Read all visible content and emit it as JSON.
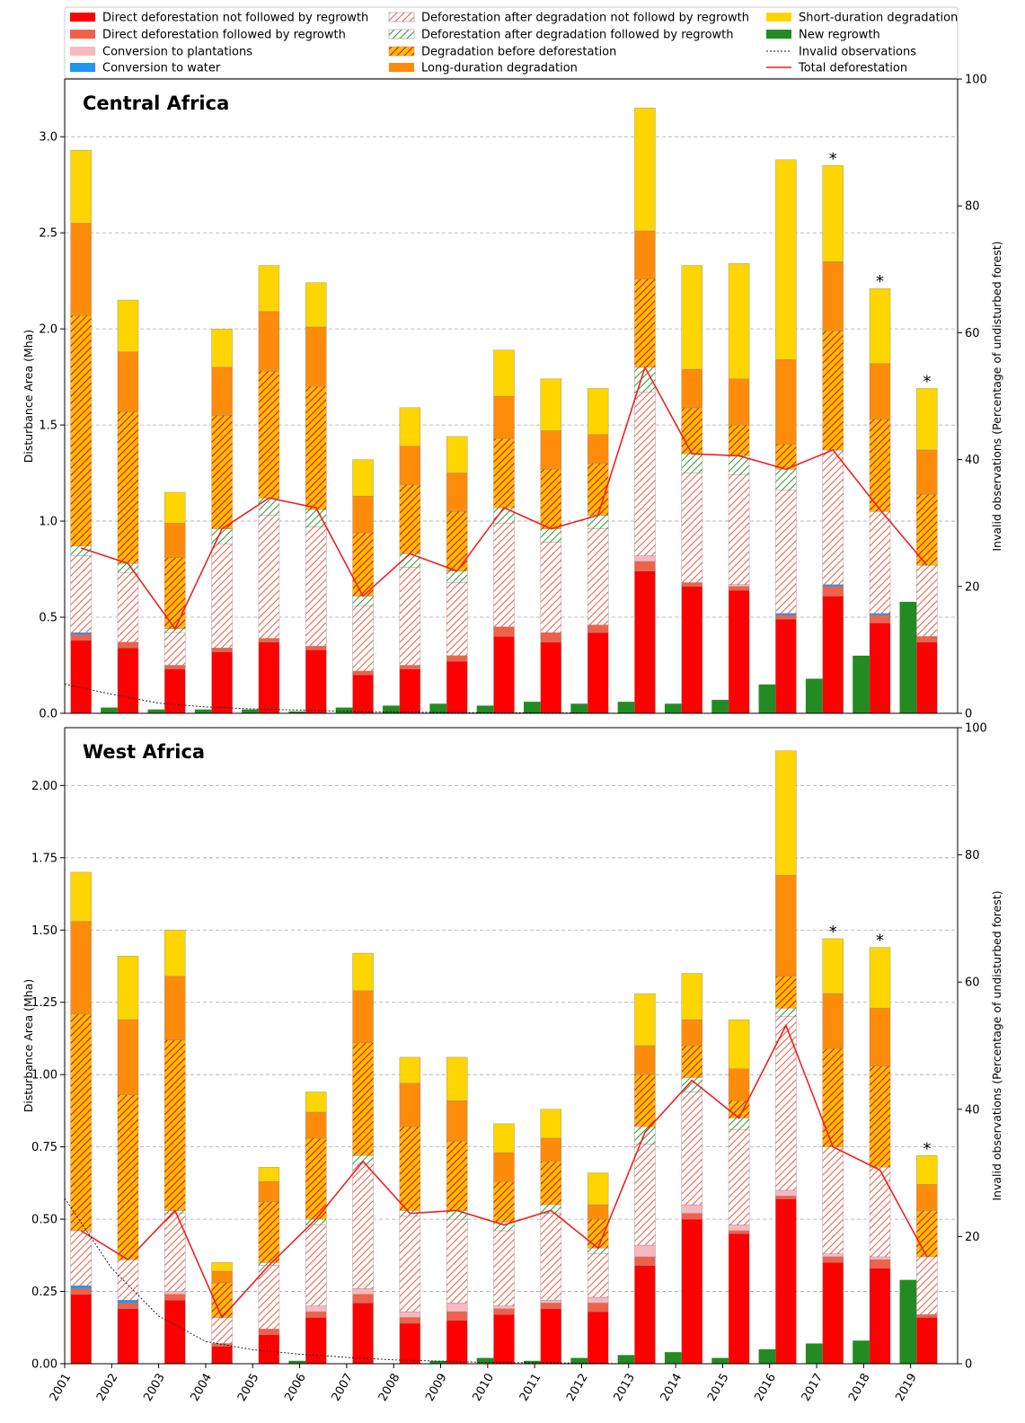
{
  "colors": {
    "direct_no_regrowth": "#fe0000",
    "direct_regrowth": "#f0614a",
    "plantations": "#f9b7c0",
    "water": "#2196f3",
    "after_deg_no_regrowth_line": "#f0614a",
    "after_deg_no_regrowth_bg": "#ffffff",
    "after_deg_regrowth_line": "#3c9a3c",
    "after_deg_regrowth_bg": "#ffffff",
    "deg_before_def_bg": "#ffc000",
    "deg_before_def_line": "#ff0000",
    "long_degradation": "#fe8c0a",
    "short_degradation": "#ffd500",
    "new_regrowth": "#238b22",
    "total_line": "#ee2222",
    "invalid_line": "#111111",
    "grid": "#a9a9a9"
  },
  "chart_data": {
    "type": "bar",
    "stacked": true,
    "x": [
      "2001",
      "2002",
      "2003",
      "2004",
      "2005",
      "2006",
      "2007",
      "2008",
      "2009",
      "2010",
      "2011",
      "2012",
      "2013",
      "2014",
      "2015",
      "2016",
      "2017",
      "2018",
      "2019"
    ],
    "legend": [
      {
        "key": "direct_no_regrowth",
        "label": "Direct deforestation not followed by regrowth",
        "kind": "fill"
      },
      {
        "key": "direct_regrowth",
        "label": "Direct deforestation followed by regrowth",
        "kind": "fill"
      },
      {
        "key": "plantations",
        "label": "Conversion to plantations",
        "kind": "fill"
      },
      {
        "key": "water",
        "label": "Conversion to water",
        "kind": "fill"
      },
      {
        "key": "after_deg_no_regrowth",
        "label": "Deforestation after degradation not followd by regrowth",
        "kind": "hatch"
      },
      {
        "key": "after_deg_regrowth",
        "label": "Deforestation after degradation followed by regrowth",
        "kind": "hatch"
      },
      {
        "key": "deg_before_def",
        "label": "Degradation before deforestation",
        "kind": "hatch"
      },
      {
        "key": "long_degradation",
        "label": "Long-duration degradation",
        "kind": "fill"
      },
      {
        "key": "short_degradation",
        "label": "Short-duration degradation",
        "kind": "fill"
      },
      {
        "key": "new_regrowth",
        "label": "New regrowth",
        "kind": "fill"
      },
      {
        "key": "invalid",
        "label": "Invalid observations",
        "kind": "dotted"
      },
      {
        "key": "total",
        "label": "Total deforestation",
        "kind": "line"
      }
    ],
    "panels": [
      {
        "title": "Central Africa",
        "ylabel": "Disturbance Area (Mha)",
        "y2label": "Invalid observations (Percentage of undisturbed forest)",
        "ylim": [
          0,
          3.3
        ],
        "yticks": [
          0.0,
          0.5,
          1.0,
          1.5,
          2.0,
          2.5,
          3.0
        ],
        "ytick_labels": [
          "0.0",
          "0.5",
          "1.0",
          "1.5",
          "2.0",
          "2.5",
          "3.0"
        ],
        "y2lim": [
          0,
          100
        ],
        "y2ticks": [
          0,
          20,
          40,
          60,
          80,
          100
        ],
        "y2tick_labels": [
          "0",
          "20",
          "40",
          "60",
          "80",
          "100"
        ],
        "stack": {
          "direct_no_regrowth": [
            0.38,
            0.34,
            0.23,
            0.32,
            0.37,
            0.33,
            0.2,
            0.23,
            0.27,
            0.4,
            0.37,
            0.42,
            0.74,
            0.66,
            0.64,
            0.49,
            0.61,
            0.47,
            0.37
          ],
          "direct_regrowth": [
            0.03,
            0.03,
            0.02,
            0.02,
            0.02,
            0.02,
            0.02,
            0.02,
            0.03,
            0.05,
            0.05,
            0.04,
            0.05,
            0.02,
            0.02,
            0.02,
            0.05,
            0.04,
            0.03
          ],
          "plantations": [
            0.0,
            0.0,
            0.0,
            0.0,
            0.0,
            0.0,
            0.0,
            0.0,
            0.0,
            0.0,
            0.0,
            0.0,
            0.03,
            0.0,
            0.01,
            0.0,
            0.0,
            0.0,
            0.0
          ],
          "water": [
            0.01,
            0.0,
            0.0,
            0.0,
            0.0,
            0.0,
            0.0,
            0.0,
            0.0,
            0.0,
            0.0,
            0.0,
            0.0,
            0.0,
            0.0,
            0.01,
            0.01,
            0.01,
            0.0
          ],
          "after_deg_no_regrowth": [
            0.4,
            0.36,
            0.17,
            0.54,
            0.64,
            0.62,
            0.34,
            0.51,
            0.38,
            0.54,
            0.47,
            0.5,
            0.85,
            0.57,
            0.57,
            0.64,
            0.7,
            0.53,
            0.37
          ],
          "after_deg_regrowth": [
            0.05,
            0.05,
            0.02,
            0.08,
            0.09,
            0.09,
            0.05,
            0.07,
            0.06,
            0.08,
            0.07,
            0.07,
            0.13,
            0.1,
            0.1,
            0.11,
            0.0,
            0.0,
            0.0
          ],
          "deg_before_def": [
            1.2,
            0.79,
            0.37,
            0.59,
            0.66,
            0.64,
            0.33,
            0.36,
            0.31,
            0.36,
            0.31,
            0.27,
            0.46,
            0.24,
            0.16,
            0.13,
            0.62,
            0.48,
            0.37
          ],
          "long_degradation": [
            0.48,
            0.31,
            0.18,
            0.25,
            0.31,
            0.31,
            0.19,
            0.2,
            0.2,
            0.22,
            0.2,
            0.15,
            0.25,
            0.2,
            0.24,
            0.44,
            0.36,
            0.29,
            0.23
          ],
          "short_degradation": [
            0.38,
            0.27,
            0.16,
            0.2,
            0.24,
            0.23,
            0.19,
            0.2,
            0.19,
            0.24,
            0.27,
            0.24,
            0.64,
            0.54,
            0.6,
            1.04,
            0.5,
            0.39,
            0.32
          ]
        },
        "new_regrowth": [
          0.03,
          0.02,
          0.02,
          0.02,
          0.01,
          0.03,
          0.04,
          0.05,
          0.04,
          0.06,
          0.05,
          0.06,
          0.05,
          0.07,
          0.15,
          0.18,
          0.3,
          0.58,
          0.0
        ],
        "total_deforestation": [
          0.86,
          0.78,
          0.44,
          0.96,
          1.12,
          1.07,
          0.61,
          0.83,
          0.74,
          1.07,
          0.96,
          1.03,
          1.8,
          1.35,
          1.34,
          1.27,
          1.37,
          1.06,
          0.77
        ],
        "invalid_observations_pct": [
          4.6,
          3.0,
          1.6,
          1.0,
          0.7,
          0.5,
          0.3,
          0.2,
          0.15,
          0.1,
          0.1,
          0.05,
          0.0,
          0.0,
          0.0,
          0.0,
          0.0,
          0.0,
          0.0
        ],
        "asterisk_years": [
          "2017",
          "2018",
          "2019"
        ],
        "asterisk": "*"
      },
      {
        "title": "West Africa",
        "ylabel": "Disturbance Area (Mha)",
        "y2label": "Invalid observations (Percentage of undisturbed forest)",
        "ylim": [
          0,
          2.2
        ],
        "yticks": [
          0.0,
          0.25,
          0.5,
          0.75,
          1.0,
          1.25,
          1.5,
          1.75,
          2.0
        ],
        "ytick_labels": [
          "0.00",
          "0.25",
          "0.50",
          "0.75",
          "1.00",
          "1.25",
          "1.50",
          "1.75",
          "2.00"
        ],
        "y2lim": [
          0,
          100
        ],
        "y2ticks": [
          0,
          20,
          40,
          60,
          80,
          100
        ],
        "y2tick_labels": [
          "0",
          "20",
          "40",
          "60",
          "80",
          "100"
        ],
        "stack": {
          "direct_no_regrowth": [
            0.24,
            0.19,
            0.22,
            0.06,
            0.1,
            0.16,
            0.21,
            0.14,
            0.15,
            0.17,
            0.19,
            0.18,
            0.34,
            0.5,
            0.45,
            0.57,
            0.35,
            0.33,
            0.16
          ],
          "direct_regrowth": [
            0.02,
            0.02,
            0.02,
            0.01,
            0.02,
            0.02,
            0.03,
            0.02,
            0.03,
            0.02,
            0.02,
            0.03,
            0.03,
            0.02,
            0.01,
            0.01,
            0.02,
            0.03,
            0.01
          ],
          "plantations": [
            0.0,
            0.0,
            0.01,
            0.0,
            0.0,
            0.02,
            0.02,
            0.02,
            0.03,
            0.01,
            0.01,
            0.02,
            0.04,
            0.03,
            0.02,
            0.02,
            0.01,
            0.01,
            0.0
          ],
          "water": [
            0.01,
            0.01,
            0.0,
            0.0,
            0.0,
            0.0,
            0.0,
            0.0,
            0.0,
            0.0,
            0.0,
            0.0,
            0.0,
            0.0,
            0.0,
            0.0,
            0.0,
            0.0,
            0.0
          ],
          "after_deg_no_regrowth": [
            0.19,
            0.14,
            0.27,
            0.09,
            0.22,
            0.28,
            0.43,
            0.33,
            0.29,
            0.26,
            0.3,
            0.15,
            0.35,
            0.39,
            0.33,
            0.6,
            0.37,
            0.31,
            0.2
          ],
          "after_deg_regrowth": [
            0.0,
            0.0,
            0.01,
            0.0,
            0.01,
            0.02,
            0.03,
            0.02,
            0.03,
            0.03,
            0.03,
            0.02,
            0.06,
            0.05,
            0.04,
            0.03,
            0.0,
            0.0,
            0.0
          ],
          "deg_before_def": [
            0.75,
            0.57,
            0.59,
            0.12,
            0.21,
            0.28,
            0.39,
            0.29,
            0.24,
            0.14,
            0.15,
            0.1,
            0.18,
            0.11,
            0.06,
            0.11,
            0.34,
            0.35,
            0.16
          ],
          "long_degradation": [
            0.32,
            0.26,
            0.22,
            0.04,
            0.07,
            0.09,
            0.18,
            0.15,
            0.14,
            0.1,
            0.08,
            0.05,
            0.1,
            0.09,
            0.11,
            0.35,
            0.19,
            0.2,
            0.09
          ],
          "short_degradation": [
            0.17,
            0.22,
            0.16,
            0.03,
            0.05,
            0.07,
            0.13,
            0.09,
            0.15,
            0.1,
            0.1,
            0.11,
            0.18,
            0.16,
            0.17,
            0.43,
            0.19,
            0.21,
            0.1
          ]
        },
        "new_regrowth": [
          0.0,
          0.0,
          0.0,
          0.0,
          0.01,
          0.0,
          0.0,
          0.01,
          0.02,
          0.01,
          0.02,
          0.03,
          0.04,
          0.02,
          0.05,
          0.07,
          0.08,
          0.29,
          0.0
        ],
        "total_deforestation": [
          0.46,
          0.36,
          0.53,
          0.16,
          0.34,
          0.5,
          0.7,
          0.52,
          0.53,
          0.48,
          0.53,
          0.4,
          0.8,
          0.98,
          0.85,
          1.17,
          0.75,
          0.67,
          0.37
        ],
        "invalid_observations_pct": [
          26.0,
          15.0,
          7.5,
          3.5,
          2.2,
          1.5,
          1.0,
          0.6,
          0.4,
          0.2,
          0.15,
          0.1,
          0.0,
          0.0,
          0.0,
          0.0,
          0.0,
          0.0,
          0.0
        ],
        "asterisk_years": [
          "2017",
          "2018",
          "2019"
        ],
        "asterisk": "*"
      }
    ]
  }
}
